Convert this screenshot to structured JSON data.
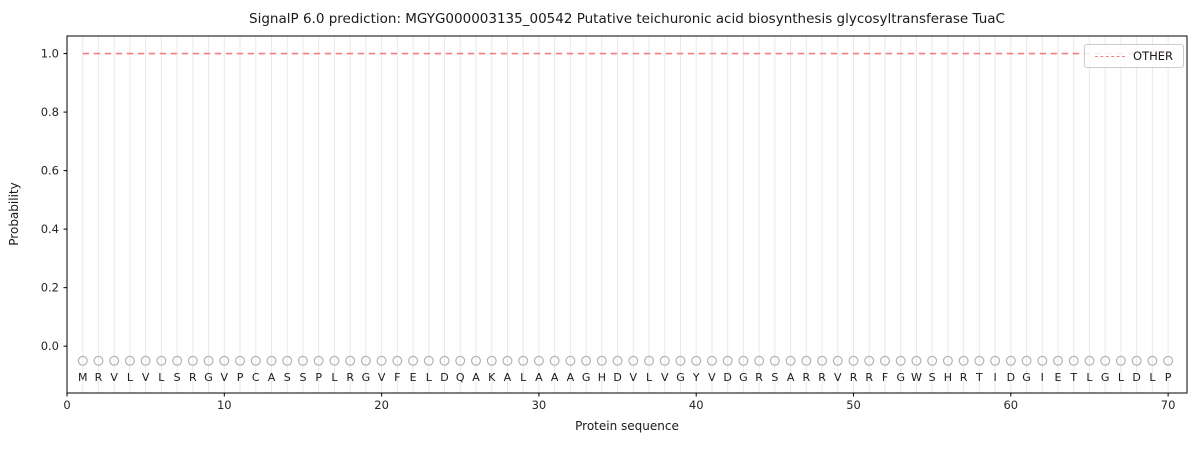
{
  "figure": {
    "title": "SignalP 6.0 prediction: MGYG000003135_00542 Putative teichuronic acid biosynthesis glycosyltransferase TuaC",
    "xlabel": "Protein sequence",
    "ylabel": "Probability",
    "legend": {
      "position": "upper right",
      "entries": [
        {
          "label": "OTHER",
          "color": "#f08080",
          "dash": true
        }
      ]
    }
  },
  "chart_data": {
    "type": "line",
    "title": "SignalP 6.0 prediction: MGYG000003135_00542 Putative teichuronic acid biosynthesis glycosyltransferase TuaC",
    "xlabel": "Protein sequence",
    "ylabel": "Probability",
    "xlim": [
      0,
      71.2
    ],
    "ylim": [
      -0.16,
      1.06
    ],
    "xticks": [
      0,
      10,
      20,
      30,
      40,
      50,
      60,
      70
    ],
    "yticks": [
      0.0,
      0.2,
      0.4,
      0.6,
      0.8,
      1.0
    ],
    "grid": "faint vertical line at every residue position",
    "legend_position": "upper right",
    "series": [
      {
        "name": "OTHER",
        "style": "dashed",
        "color": "#f08080",
        "x": [
          1,
          2,
          3,
          4,
          5,
          6,
          7,
          8,
          9,
          10,
          11,
          12,
          13,
          14,
          15,
          16,
          17,
          18,
          19,
          20,
          21,
          22,
          23,
          24,
          25,
          26,
          27,
          28,
          29,
          30,
          31,
          32,
          33,
          34,
          35,
          36,
          37,
          38,
          39,
          40,
          41,
          42,
          43,
          44,
          45,
          46,
          47,
          48,
          49,
          50,
          51,
          52,
          53,
          54,
          55,
          56,
          57,
          58,
          59,
          60,
          61,
          62,
          63,
          64,
          65,
          66,
          67,
          68,
          69,
          70
        ],
        "y": [
          1.0,
          1.0,
          1.0,
          1.0,
          1.0,
          1.0,
          1.0,
          1.0,
          1.0,
          1.0,
          1.0,
          1.0,
          1.0,
          1.0,
          1.0,
          1.0,
          1.0,
          1.0,
          1.0,
          1.0,
          1.0,
          1.0,
          1.0,
          1.0,
          1.0,
          1.0,
          1.0,
          1.0,
          1.0,
          1.0,
          1.0,
          1.0,
          1.0,
          1.0,
          1.0,
          1.0,
          1.0,
          1.0,
          1.0,
          1.0,
          1.0,
          1.0,
          1.0,
          1.0,
          1.0,
          1.0,
          1.0,
          1.0,
          1.0,
          1.0,
          1.0,
          1.0,
          1.0,
          1.0,
          1.0,
          1.0,
          1.0,
          1.0,
          1.0,
          1.0,
          1.0,
          1.0,
          1.0,
          1.0,
          1.0,
          1.0,
          1.0,
          1.0,
          1.0,
          1.0
        ]
      }
    ],
    "residue_markers": {
      "symbol": "open-circle",
      "color": "#b3b3b3",
      "y": -0.05
    },
    "sequence": "MRVLVLSRGVPCASSPLRGVFELDQAKALAAAGHDVLVGYVDGRSARRVRRFGWSHRTIDGIETLGLDLP"
  },
  "style": {
    "grid_color": "#e9e9e9",
    "frame_color": "#000000",
    "tick_label_color": "#262626",
    "sequence_color": "#1a1a1a"
  }
}
